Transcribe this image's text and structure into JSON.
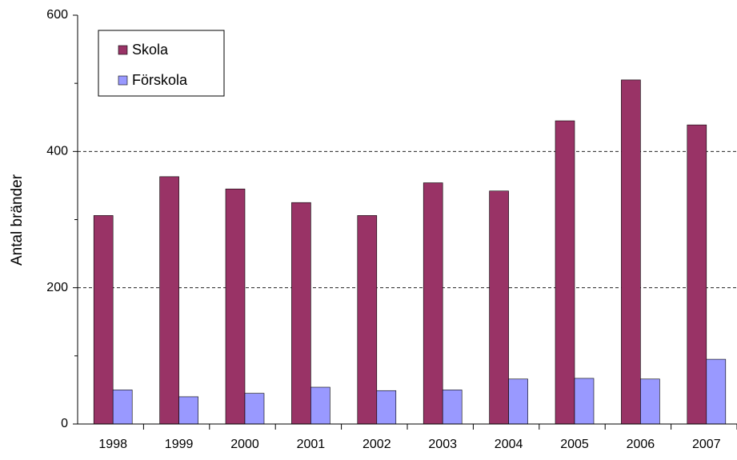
{
  "chart_data": {
    "type": "bar",
    "ylabel": "Antal bränder",
    "categories": [
      "1998",
      "1999",
      "2000",
      "2001",
      "2002",
      "2003",
      "2004",
      "2005",
      "2006",
      "2007"
    ],
    "series": [
      {
        "name": "Skola",
        "color": "#993366",
        "values": [
          306,
          363,
          345,
          325,
          306,
          354,
          342,
          445,
          505,
          439
        ]
      },
      {
        "name": "Förskola",
        "color": "#9999ff",
        "values": [
          50,
          40,
          45,
          54,
          49,
          50,
          66,
          67,
          66,
          95
        ]
      }
    ],
    "ylim": [
      0,
      600
    ],
    "yticks": [
      0,
      200,
      400,
      600
    ],
    "yticks_minor": [
      100,
      300,
      500
    ],
    "grid": true,
    "legend": "upper left"
  }
}
